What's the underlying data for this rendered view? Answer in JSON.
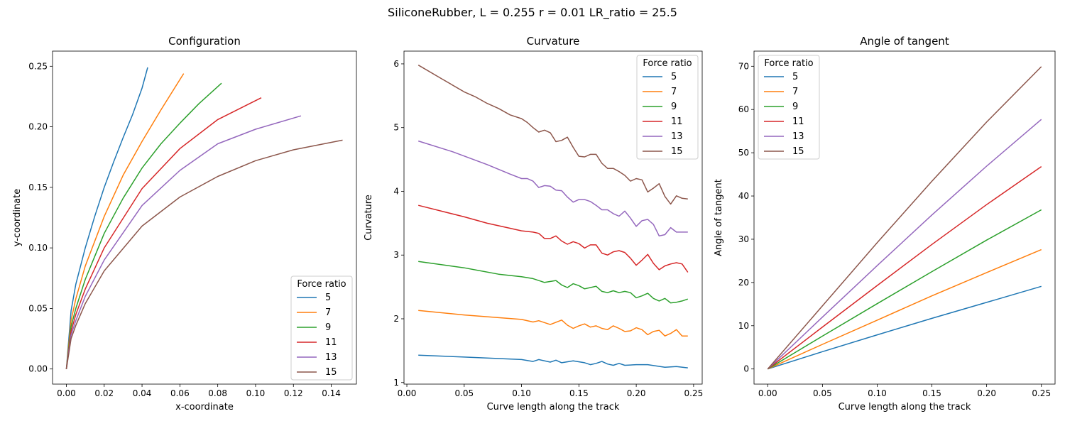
{
  "figure": {
    "title": "SiliconeRubber, L = 0.255 r = 0.01 LR_ratio = 25.5"
  },
  "colors": [
    "#1f77b4",
    "#ff7f0e",
    "#2ca02c",
    "#d62728",
    "#9467bd",
    "#8c564b"
  ],
  "chart_data": [
    {
      "type": "line",
      "title": "Configuration",
      "xlabel": "x-coordinate",
      "ylabel": "y-coordinate",
      "xlim": [
        -0.0073,
        0.1533
      ],
      "ylim": [
        -0.0125,
        0.2625
      ],
      "xticks": [
        0.0,
        0.02,
        0.04,
        0.06,
        0.08,
        0.1,
        0.12,
        0.14
      ],
      "xtick_labels": [
        "0.00",
        "0.02",
        "0.04",
        "0.06",
        "0.08",
        "0.10",
        "0.12",
        "0.14"
      ],
      "yticks": [
        0.0,
        0.05,
        0.1,
        0.15,
        0.2,
        0.25
      ],
      "ytick_labels": [
        "0.00",
        "0.05",
        "0.10",
        "0.15",
        "0.20",
        "0.25"
      ],
      "grid": false,
      "legend": {
        "title": "Force ratio",
        "position": "lower-right"
      },
      "series": [
        {
          "name": "5",
          "x": [
            0.0,
            0.0025,
            0.005,
            0.01,
            0.015,
            0.02,
            0.025,
            0.03,
            0.035,
            0.04,
            0.043
          ],
          "y": [
            0.0,
            0.048,
            0.07,
            0.1,
            0.126,
            0.15,
            0.171,
            0.191,
            0.21,
            0.232,
            0.249
          ]
        },
        {
          "name": "7",
          "x": [
            0.0,
            0.0025,
            0.005,
            0.01,
            0.02,
            0.03,
            0.04,
            0.05,
            0.062
          ],
          "y": [
            0.0,
            0.04,
            0.058,
            0.085,
            0.126,
            0.16,
            0.188,
            0.214,
            0.244
          ]
        },
        {
          "name": "9",
          "x": [
            0.0,
            0.0025,
            0.005,
            0.01,
            0.02,
            0.03,
            0.04,
            0.05,
            0.06,
            0.07,
            0.082
          ],
          "y": [
            0.0,
            0.035,
            0.05,
            0.074,
            0.112,
            0.141,
            0.166,
            0.186,
            0.203,
            0.219,
            0.236
          ]
        },
        {
          "name": "11",
          "x": [
            0.0,
            0.0025,
            0.005,
            0.01,
            0.02,
            0.04,
            0.06,
            0.08,
            0.103
          ],
          "y": [
            0.0,
            0.031,
            0.045,
            0.066,
            0.1,
            0.149,
            0.182,
            0.206,
            0.224
          ]
        },
        {
          "name": "13",
          "x": [
            0.0,
            0.0025,
            0.005,
            0.01,
            0.02,
            0.04,
            0.06,
            0.08,
            0.1,
            0.124
          ],
          "y": [
            0.0,
            0.028,
            0.04,
            0.06,
            0.09,
            0.135,
            0.164,
            0.186,
            0.198,
            0.209
          ]
        },
        {
          "name": "15",
          "x": [
            0.0,
            0.0025,
            0.005,
            0.01,
            0.02,
            0.04,
            0.06,
            0.08,
            0.1,
            0.12,
            0.146
          ],
          "y": [
            0.0,
            0.025,
            0.036,
            0.054,
            0.081,
            0.118,
            0.142,
            0.159,
            0.172,
            0.181,
            0.189
          ]
        }
      ]
    },
    {
      "type": "line",
      "title": "Curvature",
      "xlabel": "Curve length along the track",
      "ylabel": "Curvature",
      "xlim": [
        -0.0025,
        0.2575
      ],
      "ylim": [
        0.975,
        6.2
      ],
      "xticks": [
        0.0,
        0.05,
        0.1,
        0.15,
        0.2,
        0.25
      ],
      "xtick_labels": [
        "0.00",
        "0.05",
        "0.10",
        "0.15",
        "0.20",
        "0.25"
      ],
      "yticks": [
        1,
        2,
        3,
        4,
        5,
        6
      ],
      "ytick_labels": [
        "1",
        "2",
        "3",
        "4",
        "5",
        "6"
      ],
      "grid": false,
      "legend": {
        "title": "Force ratio",
        "position": "upper-right"
      },
      "series": [
        {
          "name": "5",
          "x": [
            0.01,
            0.05,
            0.1,
            0.11,
            0.115,
            0.125,
            0.13,
            0.135,
            0.145,
            0.155,
            0.16,
            0.165,
            0.17,
            0.175,
            0.18,
            0.185,
            0.19,
            0.2,
            0.21,
            0.225,
            0.235,
            0.245
          ],
          "y": [
            1.43,
            1.4,
            1.36,
            1.33,
            1.36,
            1.32,
            1.35,
            1.31,
            1.34,
            1.31,
            1.28,
            1.3,
            1.33,
            1.29,
            1.27,
            1.3,
            1.27,
            1.28,
            1.28,
            1.24,
            1.25,
            1.23
          ]
        },
        {
          "name": "7",
          "x": [
            0.01,
            0.05,
            0.1,
            0.11,
            0.115,
            0.125,
            0.135,
            0.14,
            0.145,
            0.15,
            0.155,
            0.16,
            0.165,
            0.17,
            0.175,
            0.18,
            0.185,
            0.19,
            0.195,
            0.2,
            0.205,
            0.21,
            0.215,
            0.22,
            0.225,
            0.23,
            0.235,
            0.24,
            0.245
          ],
          "y": [
            2.13,
            2.06,
            1.99,
            1.95,
            1.97,
            1.91,
            1.98,
            1.9,
            1.85,
            1.89,
            1.92,
            1.87,
            1.89,
            1.85,
            1.83,
            1.89,
            1.85,
            1.8,
            1.81,
            1.86,
            1.83,
            1.75,
            1.8,
            1.82,
            1.73,
            1.77,
            1.83,
            1.73,
            1.73
          ]
        },
        {
          "name": "9",
          "x": [
            0.01,
            0.05,
            0.08,
            0.1,
            0.11,
            0.12,
            0.13,
            0.135,
            0.14,
            0.145,
            0.15,
            0.155,
            0.16,
            0.165,
            0.17,
            0.175,
            0.18,
            0.185,
            0.19,
            0.195,
            0.2,
            0.205,
            0.21,
            0.215,
            0.22,
            0.225,
            0.23,
            0.235,
            0.24,
            0.245
          ],
          "y": [
            2.9,
            2.8,
            2.7,
            2.66,
            2.63,
            2.57,
            2.6,
            2.53,
            2.49,
            2.55,
            2.52,
            2.47,
            2.49,
            2.51,
            2.43,
            2.41,
            2.44,
            2.41,
            2.43,
            2.41,
            2.33,
            2.36,
            2.4,
            2.32,
            2.28,
            2.32,
            2.25,
            2.26,
            2.28,
            2.31
          ]
        },
        {
          "name": "11",
          "x": [
            0.01,
            0.05,
            0.07,
            0.09,
            0.1,
            0.11,
            0.115,
            0.12,
            0.125,
            0.13,
            0.135,
            0.14,
            0.145,
            0.15,
            0.155,
            0.16,
            0.165,
            0.17,
            0.175,
            0.18,
            0.185,
            0.19,
            0.195,
            0.2,
            0.205,
            0.21,
            0.215,
            0.22,
            0.225,
            0.23,
            0.235,
            0.24,
            0.245
          ],
          "y": [
            3.78,
            3.6,
            3.5,
            3.42,
            3.38,
            3.36,
            3.34,
            3.26,
            3.26,
            3.3,
            3.22,
            3.17,
            3.21,
            3.18,
            3.11,
            3.16,
            3.16,
            3.03,
            3.0,
            3.05,
            3.07,
            3.04,
            2.95,
            2.84,
            2.92,
            3.01,
            2.87,
            2.77,
            2.83,
            2.86,
            2.88,
            2.86,
            2.73
          ]
        },
        {
          "name": "13",
          "x": [
            0.01,
            0.04,
            0.07,
            0.09,
            0.1,
            0.105,
            0.11,
            0.115,
            0.12,
            0.125,
            0.13,
            0.135,
            0.14,
            0.145,
            0.15,
            0.155,
            0.16,
            0.165,
            0.17,
            0.175,
            0.18,
            0.185,
            0.19,
            0.195,
            0.2,
            0.205,
            0.21,
            0.215,
            0.22,
            0.225,
            0.23,
            0.235,
            0.24,
            0.245
          ],
          "y": [
            4.79,
            4.62,
            4.42,
            4.27,
            4.2,
            4.2,
            4.16,
            4.06,
            4.09,
            4.08,
            4.02,
            4.01,
            3.91,
            3.83,
            3.87,
            3.87,
            3.84,
            3.78,
            3.71,
            3.71,
            3.65,
            3.61,
            3.69,
            3.58,
            3.45,
            3.54,
            3.56,
            3.48,
            3.3,
            3.32,
            3.43,
            3.36,
            3.36,
            3.36
          ]
        },
        {
          "name": "15",
          "x": [
            0.01,
            0.03,
            0.05,
            0.06,
            0.07,
            0.08,
            0.09,
            0.1,
            0.105,
            0.11,
            0.115,
            0.12,
            0.125,
            0.13,
            0.135,
            0.14,
            0.145,
            0.15,
            0.155,
            0.16,
            0.165,
            0.17,
            0.175,
            0.18,
            0.185,
            0.19,
            0.195,
            0.2,
            0.205,
            0.21,
            0.215,
            0.22,
            0.225,
            0.23,
            0.235,
            0.24,
            0.245
          ],
          "y": [
            5.98,
            5.77,
            5.56,
            5.48,
            5.38,
            5.3,
            5.2,
            5.14,
            5.08,
            5.0,
            4.93,
            4.96,
            4.92,
            4.78,
            4.8,
            4.85,
            4.69,
            4.55,
            4.54,
            4.58,
            4.58,
            4.44,
            4.36,
            4.36,
            4.31,
            4.25,
            4.16,
            4.2,
            4.18,
            3.99,
            4.05,
            4.12,
            3.92,
            3.8,
            3.93,
            3.89,
            3.88
          ]
        }
      ]
    },
    {
      "type": "line",
      "title": "Angle of tangent",
      "xlabel": "Curve length along the track",
      "ylabel": "Angle of tangent",
      "xlim": [
        -0.0125,
        0.2625
      ],
      "ylim": [
        -3.5,
        73.5
      ],
      "xticks": [
        0.0,
        0.05,
        0.1,
        0.15,
        0.2,
        0.25
      ],
      "xtick_labels": [
        "0.00",
        "0.05",
        "0.10",
        "0.15",
        "0.20",
        "0.25"
      ],
      "yticks": [
        0,
        10,
        20,
        30,
        40,
        50,
        60,
        70
      ],
      "ytick_labels": [
        "0",
        "10",
        "20",
        "30",
        "40",
        "50",
        "60",
        "70"
      ],
      "grid": false,
      "legend": {
        "title": "Force ratio",
        "position": "upper-left"
      },
      "series": [
        {
          "name": "5",
          "x": [
            0.0,
            0.05,
            0.1,
            0.15,
            0.2,
            0.25
          ],
          "y": [
            0.0,
            4.0,
            7.9,
            11.7,
            15.4,
            19.1
          ]
        },
        {
          "name": "7",
          "x": [
            0.0,
            0.05,
            0.1,
            0.15,
            0.2,
            0.25
          ],
          "y": [
            0.0,
            5.7,
            11.3,
            16.9,
            22.3,
            27.6
          ]
        },
        {
          "name": "9",
          "x": [
            0.0,
            0.05,
            0.1,
            0.15,
            0.2,
            0.25
          ],
          "y": [
            0.0,
            7.6,
            15.1,
            22.5,
            29.8,
            36.8
          ]
        },
        {
          "name": "11",
          "x": [
            0.0,
            0.05,
            0.1,
            0.15,
            0.2,
            0.25
          ],
          "y": [
            0.0,
            9.7,
            19.3,
            28.8,
            38.0,
            46.8
          ]
        },
        {
          "name": "13",
          "x": [
            0.0,
            0.05,
            0.1,
            0.15,
            0.2,
            0.25
          ],
          "y": [
            0.0,
            12.0,
            23.9,
            35.6,
            46.9,
            57.7
          ]
        },
        {
          "name": "15",
          "x": [
            0.0,
            0.05,
            0.1,
            0.15,
            0.2,
            0.25
          ],
          "y": [
            0.0,
            14.6,
            29.2,
            43.4,
            57.1,
            69.9
          ]
        }
      ]
    }
  ]
}
